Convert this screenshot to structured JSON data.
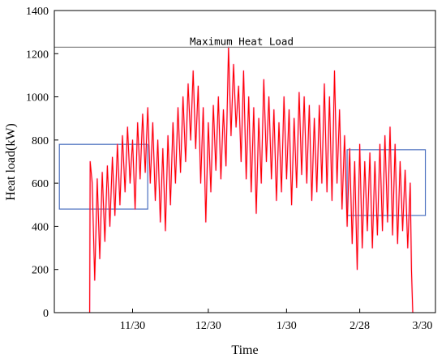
{
  "chart_data": {
    "type": "line",
    "xlabel": "Time",
    "ylabel": "Heat load(kW)",
    "ylim": [
      0,
      1400
    ],
    "yticks": [
      0,
      200,
      400,
      600,
      800,
      1000,
      1200,
      1400
    ],
    "xticks": [
      "11/30",
      "12/30",
      "1/30",
      "2/28",
      "3/30"
    ],
    "xtick_days": [
      50,
      80,
      111,
      140,
      170
    ],
    "xlim_days": [
      19,
      170
    ],
    "grid": false,
    "legend": "none",
    "reference_line": {
      "label": "Maximum Heat Load",
      "value": 1230,
      "color": "#808080"
    },
    "highlight_boxes": [
      {
        "x_days": [
          21,
          56
        ],
        "y": [
          480,
          780
        ],
        "color": "#4a6fbf"
      },
      {
        "x_days": [
          135,
          166
        ],
        "y": [
          450,
          755
        ],
        "color": "#4a6fbf"
      }
    ],
    "series": [
      {
        "color": "#ff0000",
        "start_day": 33,
        "end_day": 161,
        "points": [
          [
            33,
            0
          ],
          [
            33.2,
            700
          ],
          [
            34,
            600
          ],
          [
            35,
            150
          ],
          [
            36,
            620
          ],
          [
            37,
            250
          ],
          [
            38,
            650
          ],
          [
            39,
            330
          ],
          [
            40,
            680
          ],
          [
            41,
            400
          ],
          [
            42,
            720
          ],
          [
            43,
            450
          ],
          [
            44,
            780
          ],
          [
            45,
            500
          ],
          [
            46,
            820
          ],
          [
            47,
            560
          ],
          [
            48,
            860
          ],
          [
            49,
            600
          ],
          [
            50,
            800
          ],
          [
            51,
            480
          ],
          [
            52,
            880
          ],
          [
            53,
            620
          ],
          [
            54,
            920
          ],
          [
            55,
            650
          ],
          [
            56,
            950
          ],
          [
            57,
            600
          ],
          [
            58,
            880
          ],
          [
            59,
            520
          ],
          [
            60,
            800
          ],
          [
            61,
            420
          ],
          [
            62,
            760
          ],
          [
            63,
            380
          ],
          [
            64,
            820
          ],
          [
            65,
            500
          ],
          [
            66,
            880
          ],
          [
            67,
            600
          ],
          [
            68,
            950
          ],
          [
            69,
            650
          ],
          [
            70,
            1000
          ],
          [
            71,
            700
          ],
          [
            72,
            1060
          ],
          [
            73,
            800
          ],
          [
            74,
            1120
          ],
          [
            75,
            760
          ],
          [
            76,
            1050
          ],
          [
            77,
            600
          ],
          [
            78,
            950
          ],
          [
            79,
            420
          ],
          [
            80,
            880
          ],
          [
            81,
            560
          ],
          [
            82,
            960
          ],
          [
            83,
            660
          ],
          [
            84,
            1000
          ],
          [
            85,
            620
          ],
          [
            86,
            940
          ],
          [
            87,
            680
          ],
          [
            88,
            1230
          ],
          [
            89,
            820
          ],
          [
            90,
            1150
          ],
          [
            91,
            860
          ],
          [
            92,
            1050
          ],
          [
            93,
            700
          ],
          [
            94,
            1120
          ],
          [
            95,
            620
          ],
          [
            96,
            1000
          ],
          [
            97,
            560
          ],
          [
            98,
            950
          ],
          [
            99,
            460
          ],
          [
            100,
            900
          ],
          [
            101,
            600
          ],
          [
            102,
            1080
          ],
          [
            103,
            700
          ],
          [
            104,
            1000
          ],
          [
            105,
            620
          ],
          [
            106,
            940
          ],
          [
            107,
            520
          ],
          [
            108,
            880
          ],
          [
            109,
            560
          ],
          [
            110,
            1000
          ],
          [
            111,
            620
          ],
          [
            112,
            940
          ],
          [
            113,
            500
          ],
          [
            114,
            900
          ],
          [
            115,
            580
          ],
          [
            116,
            1020
          ],
          [
            117,
            640
          ],
          [
            118,
            1000
          ],
          [
            119,
            600
          ],
          [
            120,
            960
          ],
          [
            121,
            520
          ],
          [
            122,
            900
          ],
          [
            123,
            560
          ],
          [
            124,
            960
          ],
          [
            125,
            600
          ],
          [
            126,
            1060
          ],
          [
            127,
            560
          ],
          [
            128,
            1000
          ],
          [
            129,
            520
          ],
          [
            130,
            1120
          ],
          [
            131,
            600
          ],
          [
            132,
            940
          ],
          [
            133,
            480
          ],
          [
            134,
            820
          ],
          [
            135,
            400
          ],
          [
            136,
            760
          ],
          [
            137,
            320
          ],
          [
            138,
            700
          ],
          [
            139,
            200
          ],
          [
            140,
            780
          ],
          [
            141,
            300
          ],
          [
            142,
            700
          ],
          [
            143,
            380
          ],
          [
            144,
            740
          ],
          [
            145,
            300
          ],
          [
            146,
            700
          ],
          [
            147,
            360
          ],
          [
            148,
            780
          ],
          [
            149,
            380
          ],
          [
            150,
            820
          ],
          [
            151,
            420
          ],
          [
            152,
            860
          ],
          [
            153,
            360
          ],
          [
            154,
            780
          ],
          [
            155,
            320
          ],
          [
            156,
            700
          ],
          [
            157,
            380
          ],
          [
            158,
            660
          ],
          [
            159,
            300
          ],
          [
            160,
            600
          ],
          [
            160.5,
            200
          ],
          [
            161,
            0
          ]
        ]
      }
    ]
  }
}
